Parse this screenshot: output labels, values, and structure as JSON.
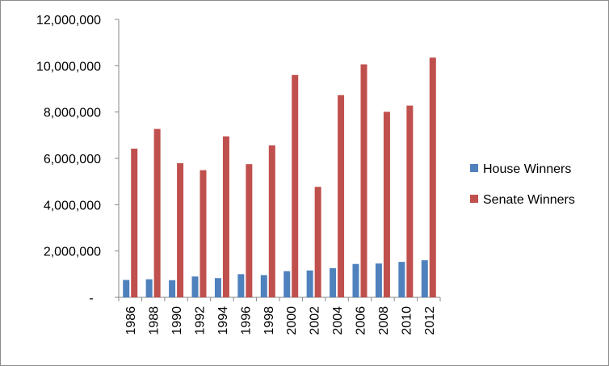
{
  "chart_data": {
    "type": "bar",
    "title": "",
    "xlabel": "",
    "ylabel": "",
    "ylim": [
      0,
      12000000
    ],
    "y_ticks": [
      {
        "value": 0,
        "label": "-"
      },
      {
        "value": 2000000,
        "label": "2,000,000"
      },
      {
        "value": 4000000,
        "label": "4,000,000"
      },
      {
        "value": 6000000,
        "label": "6,000,000"
      },
      {
        "value": 8000000,
        "label": "8,000,000"
      },
      {
        "value": 10000000,
        "label": "10,000,000"
      },
      {
        "value": 12000000,
        "label": "12,000,000"
      }
    ],
    "categories": [
      "1986",
      "1988",
      "1990",
      "1992",
      "1994",
      "1996",
      "1998",
      "2000",
      "2002",
      "2004",
      "2006",
      "2008",
      "2010",
      "2012"
    ],
    "series": [
      {
        "name": "House Winners",
        "color": "#4f81bd",
        "values": [
          750000,
          780000,
          740000,
          900000,
          830000,
          1000000,
          960000,
          1130000,
          1160000,
          1260000,
          1440000,
          1460000,
          1530000,
          1600000
        ]
      },
      {
        "name": "Senate Winners",
        "color": "#c0504d",
        "values": [
          6420000,
          7270000,
          5790000,
          5490000,
          6950000,
          5750000,
          6560000,
          9600000,
          4770000,
          8730000,
          10060000,
          8010000,
          8280000,
          10350000
        ]
      }
    ],
    "grid": false,
    "legend_position": "right"
  }
}
